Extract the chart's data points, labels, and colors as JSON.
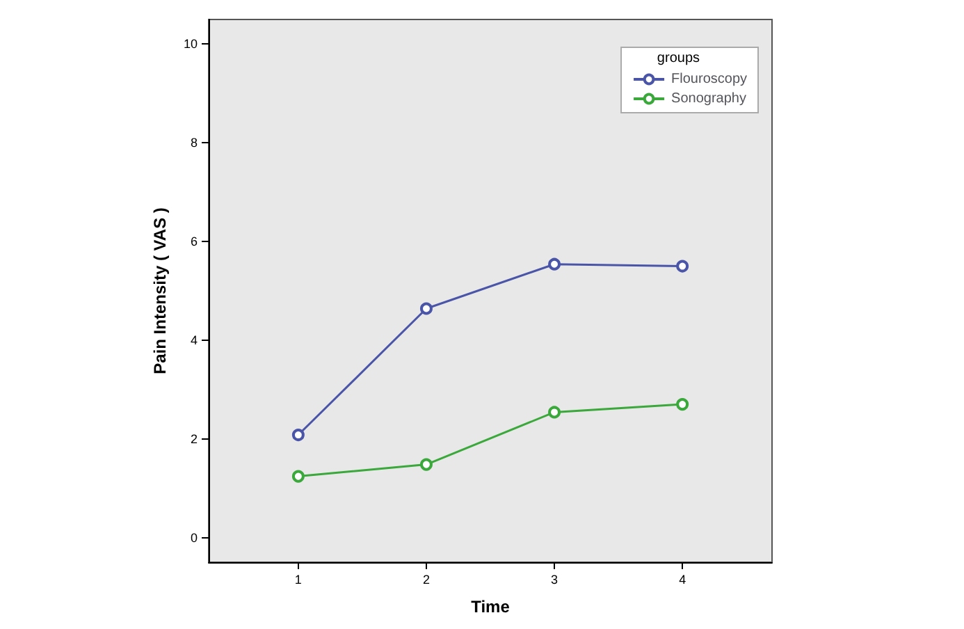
{
  "chart_data": {
    "type": "line",
    "xlabel": "Time",
    "ylabel": "Pain Intensity ( VAS )",
    "legend_title": "groups",
    "x": [
      1,
      2,
      3,
      4
    ],
    "series": [
      {
        "name": "Flouroscopy",
        "color": "#4a55a8",
        "values": [
          2.08,
          4.64,
          5.54,
          5.5
        ]
      },
      {
        "name": "Sonography",
        "color": "#3aa83a",
        "values": [
          1.24,
          1.48,
          2.54,
          2.7
        ]
      }
    ],
    "xlim": [
      0.3,
      4.7
    ],
    "xticks": [
      1,
      2,
      3,
      4
    ],
    "ylim": [
      -0.5,
      10.5
    ],
    "yticks": [
      0,
      2,
      4,
      6,
      8,
      10
    ],
    "grid": false,
    "legend": "top right",
    "marker": "circle",
    "line_style": "solid"
  }
}
